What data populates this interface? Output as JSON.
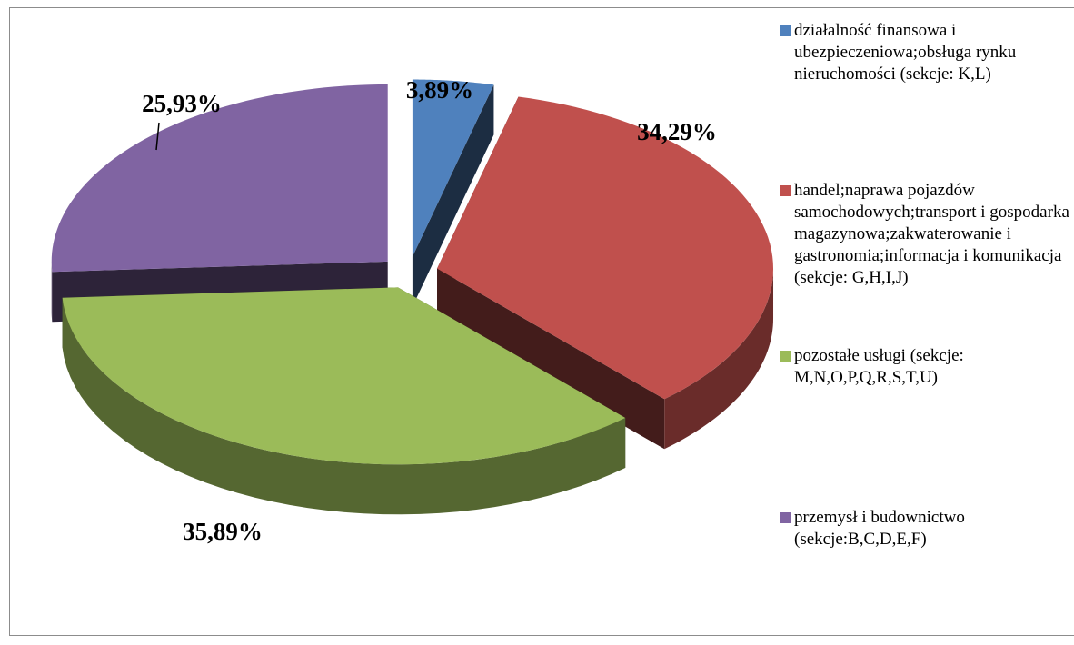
{
  "chart_data": {
    "type": "pie",
    "categories": [
      "działalność finansowa i ubezpieczeniowa;obsługa rynku nieruchomości (sekcje: K,L)",
      "handel;naprawa pojazdów samochodowych;transport i gospodarka magazynowa;zakwaterowanie i gastronomia;informacja i komunikacja (sekcje: G,H,I,J)",
      "pozostałe usługi (sekcje: M,N,O,P,Q,R,S,T,U)",
      "przemysł i budownictwo (sekcje:B,C,D,E,F)"
    ],
    "values": [
      3.89,
      34.29,
      35.89,
      25.93
    ],
    "value_labels": [
      "3,89%",
      "34,29%",
      "35,89%",
      "25,93%"
    ],
    "colors": [
      "#4f81bd",
      "#c0504d",
      "#9bbb59",
      "#8064a2"
    ],
    "legend": "right",
    "three_d": true
  }
}
